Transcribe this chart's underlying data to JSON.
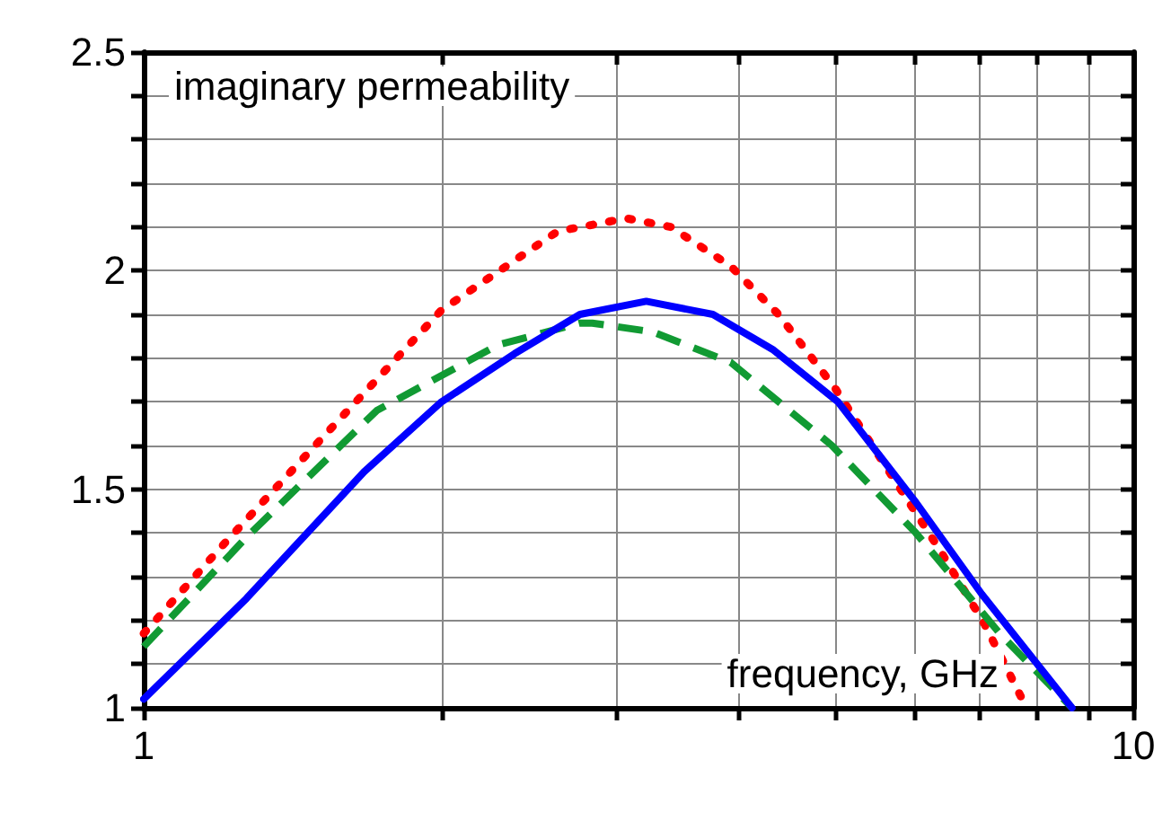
{
  "chart_data": {
    "type": "line",
    "xlabel": "frequency, GHz",
    "ylabel": "imaginary permeability",
    "log": "x",
    "grid": true,
    "marker": "none",
    "xlim": [
      1,
      10
    ],
    "ylim": [
      1,
      2.5
    ],
    "xticks": [
      1,
      {
        "value": 2,
        "label": null
      },
      {
        "value": 3,
        "label": null
      },
      {
        "value": 4,
        "label": null
      },
      {
        "value": 5,
        "label": null
      },
      {
        "value": 6,
        "label": null
      },
      {
        "value": 7,
        "label": null
      },
      {
        "value": 8,
        "label": null
      },
      {
        "value": 9,
        "label": null
      },
      10
    ],
    "yticks": [
      1,
      {
        "value": 1.1,
        "label": null
      },
      {
        "value": 1.2,
        "label": null
      },
      {
        "value": 1.3,
        "label": null
      },
      {
        "value": 1.4,
        "label": null
      },
      1.5,
      {
        "value": 1.6,
        "label": null
      },
      {
        "value": 1.7,
        "label": null
      },
      {
        "value": 1.8,
        "label": null
      },
      {
        "value": 1.9,
        "label": null
      },
      2,
      {
        "value": 2.1,
        "label": null
      },
      {
        "value": 2.2,
        "label": null
      },
      {
        "value": 2.3,
        "label": null
      },
      {
        "value": 2.4,
        "label": null
      },
      2.5
    ],
    "series": [
      {
        "color": "#ff0000",
        "line_style": "dotted",
        "x": [
          1,
          1.2,
          1.49,
          2.0,
          2.62,
          2.92,
          3.07,
          3.41,
          3.92,
          4.38,
          5.0,
          5.63,
          6.38,
          7.08,
          7.8
        ],
        "values": [
          1.17,
          1.37,
          1.6,
          1.91,
          2.09,
          2.11,
          2.12,
          2.1,
          2.01,
          1.9,
          1.73,
          1.55,
          1.36,
          1.19,
          1.0
        ]
      },
      {
        "color": "#119a33",
        "line_style": "dashed",
        "x": [
          1,
          1.27,
          1.72,
          2.28,
          2.76,
          2.84,
          3.27,
          3.92,
          4.96,
          6.03,
          7.33,
          8.67
        ],
        "values": [
          1.14,
          1.39,
          1.68,
          1.83,
          1.88,
          1.88,
          1.86,
          1.79,
          1.6,
          1.4,
          1.17,
          1.0
        ]
      },
      {
        "color": "#0000ff",
        "line_style": "solid",
        "x": [
          1,
          1.27,
          1.67,
          2.0,
          2.37,
          2.76,
          3.22,
          3.76,
          4.32,
          5.03,
          6.03,
          7.03,
          8.67
        ],
        "values": [
          1.02,
          1.25,
          1.54,
          1.7,
          1.81,
          1.9,
          1.93,
          1.9,
          1.82,
          1.7,
          1.47,
          1.26,
          1.0
        ]
      }
    ]
  }
}
